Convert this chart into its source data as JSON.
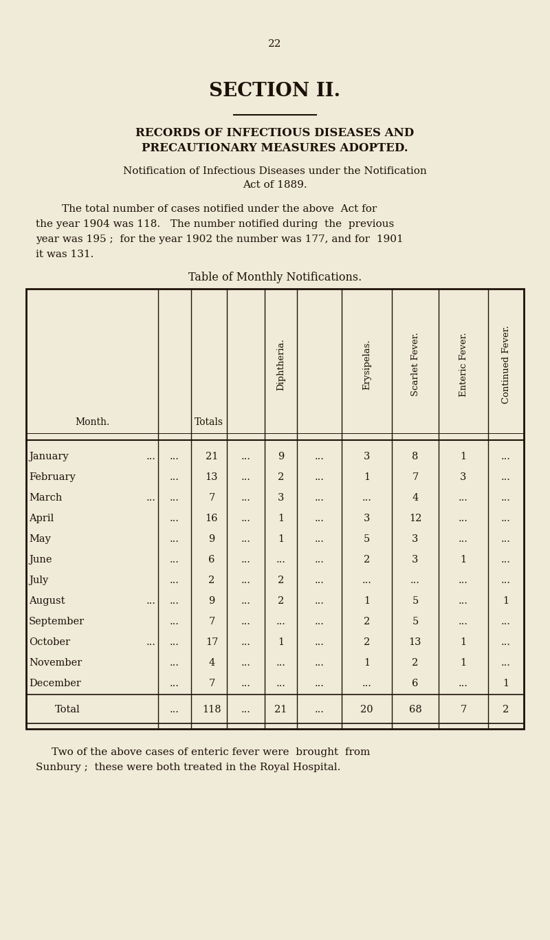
{
  "page_number": "22",
  "section_title": "SECTION II.",
  "heading1": "RECORDS OF INFECTIOUS DISEASES AND",
  "heading2": "PRECAUTIONARY MEASURES ADOPTED.",
  "notif_line1": "Notification of Infectious Diseases under the Notification",
  "notif_line2": "Act of 1889.",
  "para_line1": "The total number of cases notified under the above  Act for",
  "para_line2": "the year 1904 was 118.   The number notified during  the  previous",
  "para_line3": "year was 195 ;  for the year 1902 the number was 177, and for  1901",
  "para_line4": "it was 131.",
  "table_title": "Table of Monthly Notifications.",
  "months": [
    "January ...",
    "February",
    "March   ...",
    "April",
    "May",
    "June",
    "July",
    "August  ...",
    "September",
    "October ...",
    "November",
    "December"
  ],
  "totals": [
    "21",
    "13",
    "7",
    "16",
    "9",
    "6",
    "2",
    "9",
    "7",
    "17",
    "4",
    "7"
  ],
  "diphtheria": [
    "9",
    "2",
    "3",
    "1",
    "1",
    "",
    "2",
    "2",
    "",
    "1",
    "",
    ""
  ],
  "erysipelas": [
    "3",
    "1",
    "",
    "3",
    "5",
    "2",
    "",
    "1",
    "2",
    "2",
    "1",
    ""
  ],
  "scarlet": [
    "8",
    "7",
    "4",
    "12",
    "3",
    "3",
    "",
    "5",
    "5",
    "13",
    "2",
    "6"
  ],
  "enteric": [
    "1",
    "3",
    "",
    "",
    "",
    "1",
    "",
    "",
    "",
    "1",
    "1",
    ""
  ],
  "continued": [
    "",
    "",
    "",
    "",
    "",
    "",
    "",
    "1",
    "",
    "",
    "",
    "1"
  ],
  "footer_line1": "Two of the above cases of enteric fever were  brought  from",
  "footer_line2": "Sunbury ;  these were both treated in the Royal Hospital.",
  "bg_color": "#f0ead8",
  "text_color": "#1c1008"
}
